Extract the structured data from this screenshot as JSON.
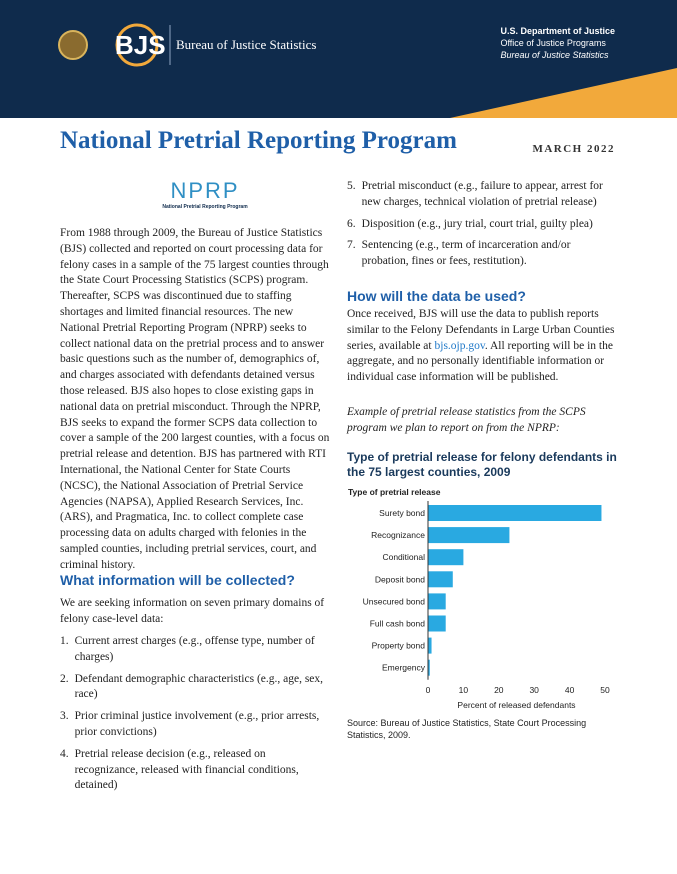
{
  "header": {
    "logo": "BJS",
    "logo_name": "Bureau of Justice Statistics",
    "agency": "U.S. Department of Justice",
    "office": "Office of Justice Programs",
    "bureau": "Bureau of Justice Statistics"
  },
  "title": "National Pretrial Reporting Program",
  "date": "MARCH 2022",
  "nprp_logo": {
    "letters": "NPRP",
    "subtitle": "National Pretrial Reporting Program"
  },
  "intro": "From 1988 through 2009, the Bureau of Justice Statistics (BJS) collected and reported on court processing data for felony cases in a sample of the 75 largest counties through the State Court Processing Statistics (SCPS) program. Thereafter, SCPS was discontinued due to staffing shortages and limited financial resources. The new National Pretrial Reporting Program (NPRP) seeks to collect national data on the pretrial process and to answer basic questions such as the number of, demographics of, and charges associated with defendants detained versus those released. BJS also hopes to close existing gaps in national data on pretrial misconduct. Through the NPRP, BJS seeks to expand the former SCPS data collection to cover a sample of the 200 largest counties, with a focus on pretrial release and detention. BJS has partnered with RTI International, the National Center for State Courts (NCSC), the National Association of Pretrial Service Agencies (NAPSA), Applied Research Services, Inc. (ARS), and Pragmatica, Inc. to collect complete case processing data on adults charged with felonies in the sampled counties, including pretrial services, court, and criminal history.",
  "section_collected": {
    "heading": "What information will be collected?",
    "intro": "We are seeking information on seven primary domains of felony case-level data:",
    "items": [
      {
        "number": "1.",
        "text": "Current arrest charges (e.g., offense type, number of charges)"
      },
      {
        "number": "2.",
        "text": "Defendant demographic characteristics (e.g., age, sex, race)"
      },
      {
        "number": "3.",
        "text": "Prior criminal justice involvement (e.g., prior arrests, prior convictions)"
      },
      {
        "number": "4.",
        "text": "Pretrial release decision (e.g., released on recognizance, released with financial conditions, detained)"
      },
      {
        "number": "5.",
        "text": "Pretrial misconduct (e.g., failure to appear, arrest for new charges, technical violation of pretrial release)"
      },
      {
        "number": "6.",
        "text": "Disposition (e.g., jury trial, court trial, guilty plea)"
      },
      {
        "number": "7.",
        "text": "Sentencing (e.g., term of incarceration and/or probation, fines or fees, restitution)."
      }
    ]
  },
  "section_used": {
    "heading": "How will the data be used?",
    "text_before": "Once received, BJS will use the data to publish reports similar to the Felony Defendants in Large Urban Counties series, available at ",
    "link": "bjs.ojp.gov",
    "text_after": ". All reporting will be in the aggregate, and no personally identifiable information or individual case information will be published.",
    "caption": "Example of pretrial release statistics from the SCPS program we plan to report on from the NPRP:"
  },
  "chart_data": {
    "type": "bar",
    "orientation": "horizontal",
    "title": "Type of pretrial release for felony defendants in the 75 largest counties, 2009",
    "y_axis_label": "Type of pretrial release",
    "x_axis_label": "Percent of released defendants",
    "categories": [
      "Surety bond",
      "Recognizance",
      "Conditional",
      "Deposit bond",
      "Unsecured bond",
      "Full cash bond",
      "Property bond",
      "Emergency"
    ],
    "values": [
      49,
      23,
      10,
      7,
      5,
      5,
      1,
      0.5
    ],
    "color": "#29a9e1",
    "xlim": [
      0,
      50
    ],
    "xticks": [
      0,
      10,
      20,
      30,
      40,
      50
    ],
    "source": "Source: Bureau of Justice Statistics, State Court Processing Statistics, 2009."
  }
}
